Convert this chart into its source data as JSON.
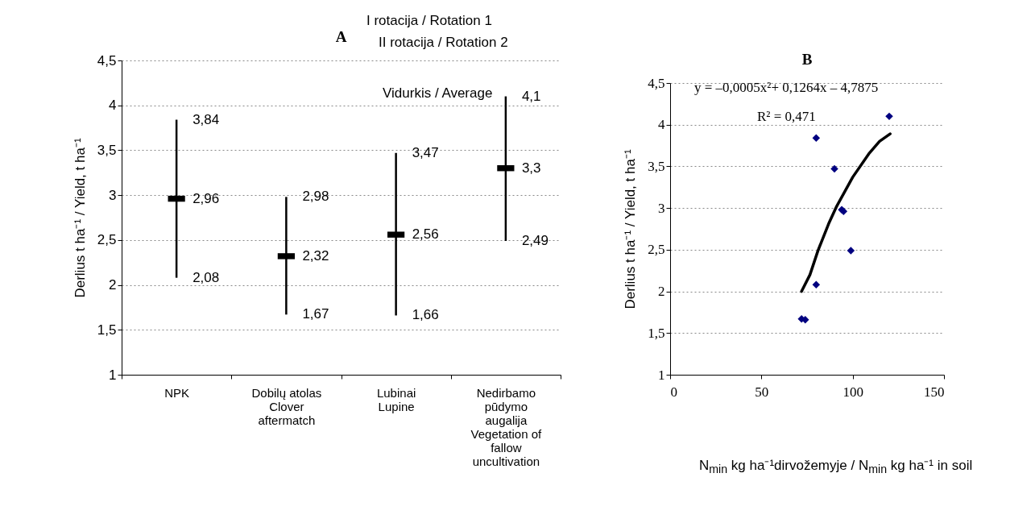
{
  "chart_data": [
    {
      "type": "scatter",
      "title": "A",
      "ylabel": "Derlius t ha⁻¹ / Yield, t ha⁻¹",
      "categories": [
        "NPK",
        "Dobilų atolas Clover aftermatch",
        "Lubinai Lupine",
        "Nedirbamo pūdymo augalija Vegetation of fallow uncultivation"
      ],
      "series": [
        {
          "color": "#000000",
          "values": [
            2.96,
            2.32,
            2.56,
            3.3
          ],
          "errors": [
            [
              2.08,
              3.84
            ],
            [
              1.67,
              2.98
            ],
            [
              1.66,
              3.47
            ],
            [
              2.49,
              4.1
            ]
          ],
          "value_labels": [
            "2,96",
            "2,32",
            "2,56",
            "3,3"
          ]
        }
      ],
      "ylim": [
        1,
        4.5
      ],
      "yticks": [
        1,
        {
          "value": 1.5,
          "label": "1,5"
        },
        2,
        {
          "value": 2.5,
          "label": "2,5"
        },
        3,
        {
          "value": 3.5,
          "label": "3,5"
        },
        4,
        {
          "value": 4.5,
          "label": "4,5"
        }
      ],
      "grid": "y",
      "annotations": [
        "I rotacija / Rotation 1",
        "II rotacija / Rotation 2",
        "Vidurkis / Average",
        {
          "text": "3,84",
          "x": "NPK",
          "y": 3.84
        },
        {
          "text": "2,08",
          "x": "NPK",
          "y": 2.08
        },
        {
          "text": "2,98",
          "x": "Dobilų atolas Clover aftermatch",
          "y": 2.98
        },
        {
          "text": "1,67",
          "x": "Dobilų atolas Clover aftermatch",
          "y": 1.67
        },
        {
          "text": "3,47",
          "x": "Lubinai Lupine",
          "y": 3.47
        },
        {
          "text": "1,66",
          "x": "Lubinai Lupine",
          "y": 1.66
        },
        {
          "text": "4,1",
          "x": "Nedirbamo pūdymo augalija Vegetation of fallow uncultivation",
          "y": 4.1
        },
        {
          "text": "2,49",
          "x": "Nedirbamo pūdymo augalija Vegetation of fallow uncultivation",
          "y": 2.49
        }
      ]
    },
    {
      "type": "scatter",
      "title": "B",
      "ylabel": "Derlius t ha⁻¹ / Yield, t ha⁻¹",
      "xlabel": "N$_{min}$ kg ha⁻¹dirvožemyje / N$_{min}$ kg ha⁻¹ in soil",
      "series": [
        {
          "color": "#000080",
          "marker": "diamond",
          "x": [
            72,
            74,
            80,
            80,
            90,
            94,
            95,
            99,
            120
          ],
          "values": [
            1.67,
            1.66,
            2.08,
            3.84,
            3.47,
            2.98,
            2.96,
            2.49,
            4.1
          ]
        },
        {
          "type": "line",
          "color": "#000000",
          "x": [
            72,
            76.6,
            81,
            86.8,
            91.2,
            100,
            108.8,
            114.7,
            120.5
          ],
          "values": [
            2.0,
            2.2,
            2.49,
            2.81,
            3.02,
            3.37,
            3.65,
            3.8,
            3.89
          ]
        }
      ],
      "xlim": [
        0,
        150
      ],
      "xticks": [
        0,
        50,
        100,
        150
      ],
      "ylim": [
        1,
        4.5
      ],
      "yticks": [
        1,
        {
          "value": 1.5,
          "label": "1,5"
        },
        2,
        {
          "value": 2.5,
          "label": "2,5"
        },
        3,
        {
          "value": 3.5,
          "label": "3,5"
        },
        4,
        {
          "value": 4.5,
          "label": "4,5"
        }
      ],
      "grid": "y",
      "annotations": [
        "y = –0,0005x²+ 0,1264x – 4,7875",
        "R² = 0,471"
      ]
    }
  ]
}
